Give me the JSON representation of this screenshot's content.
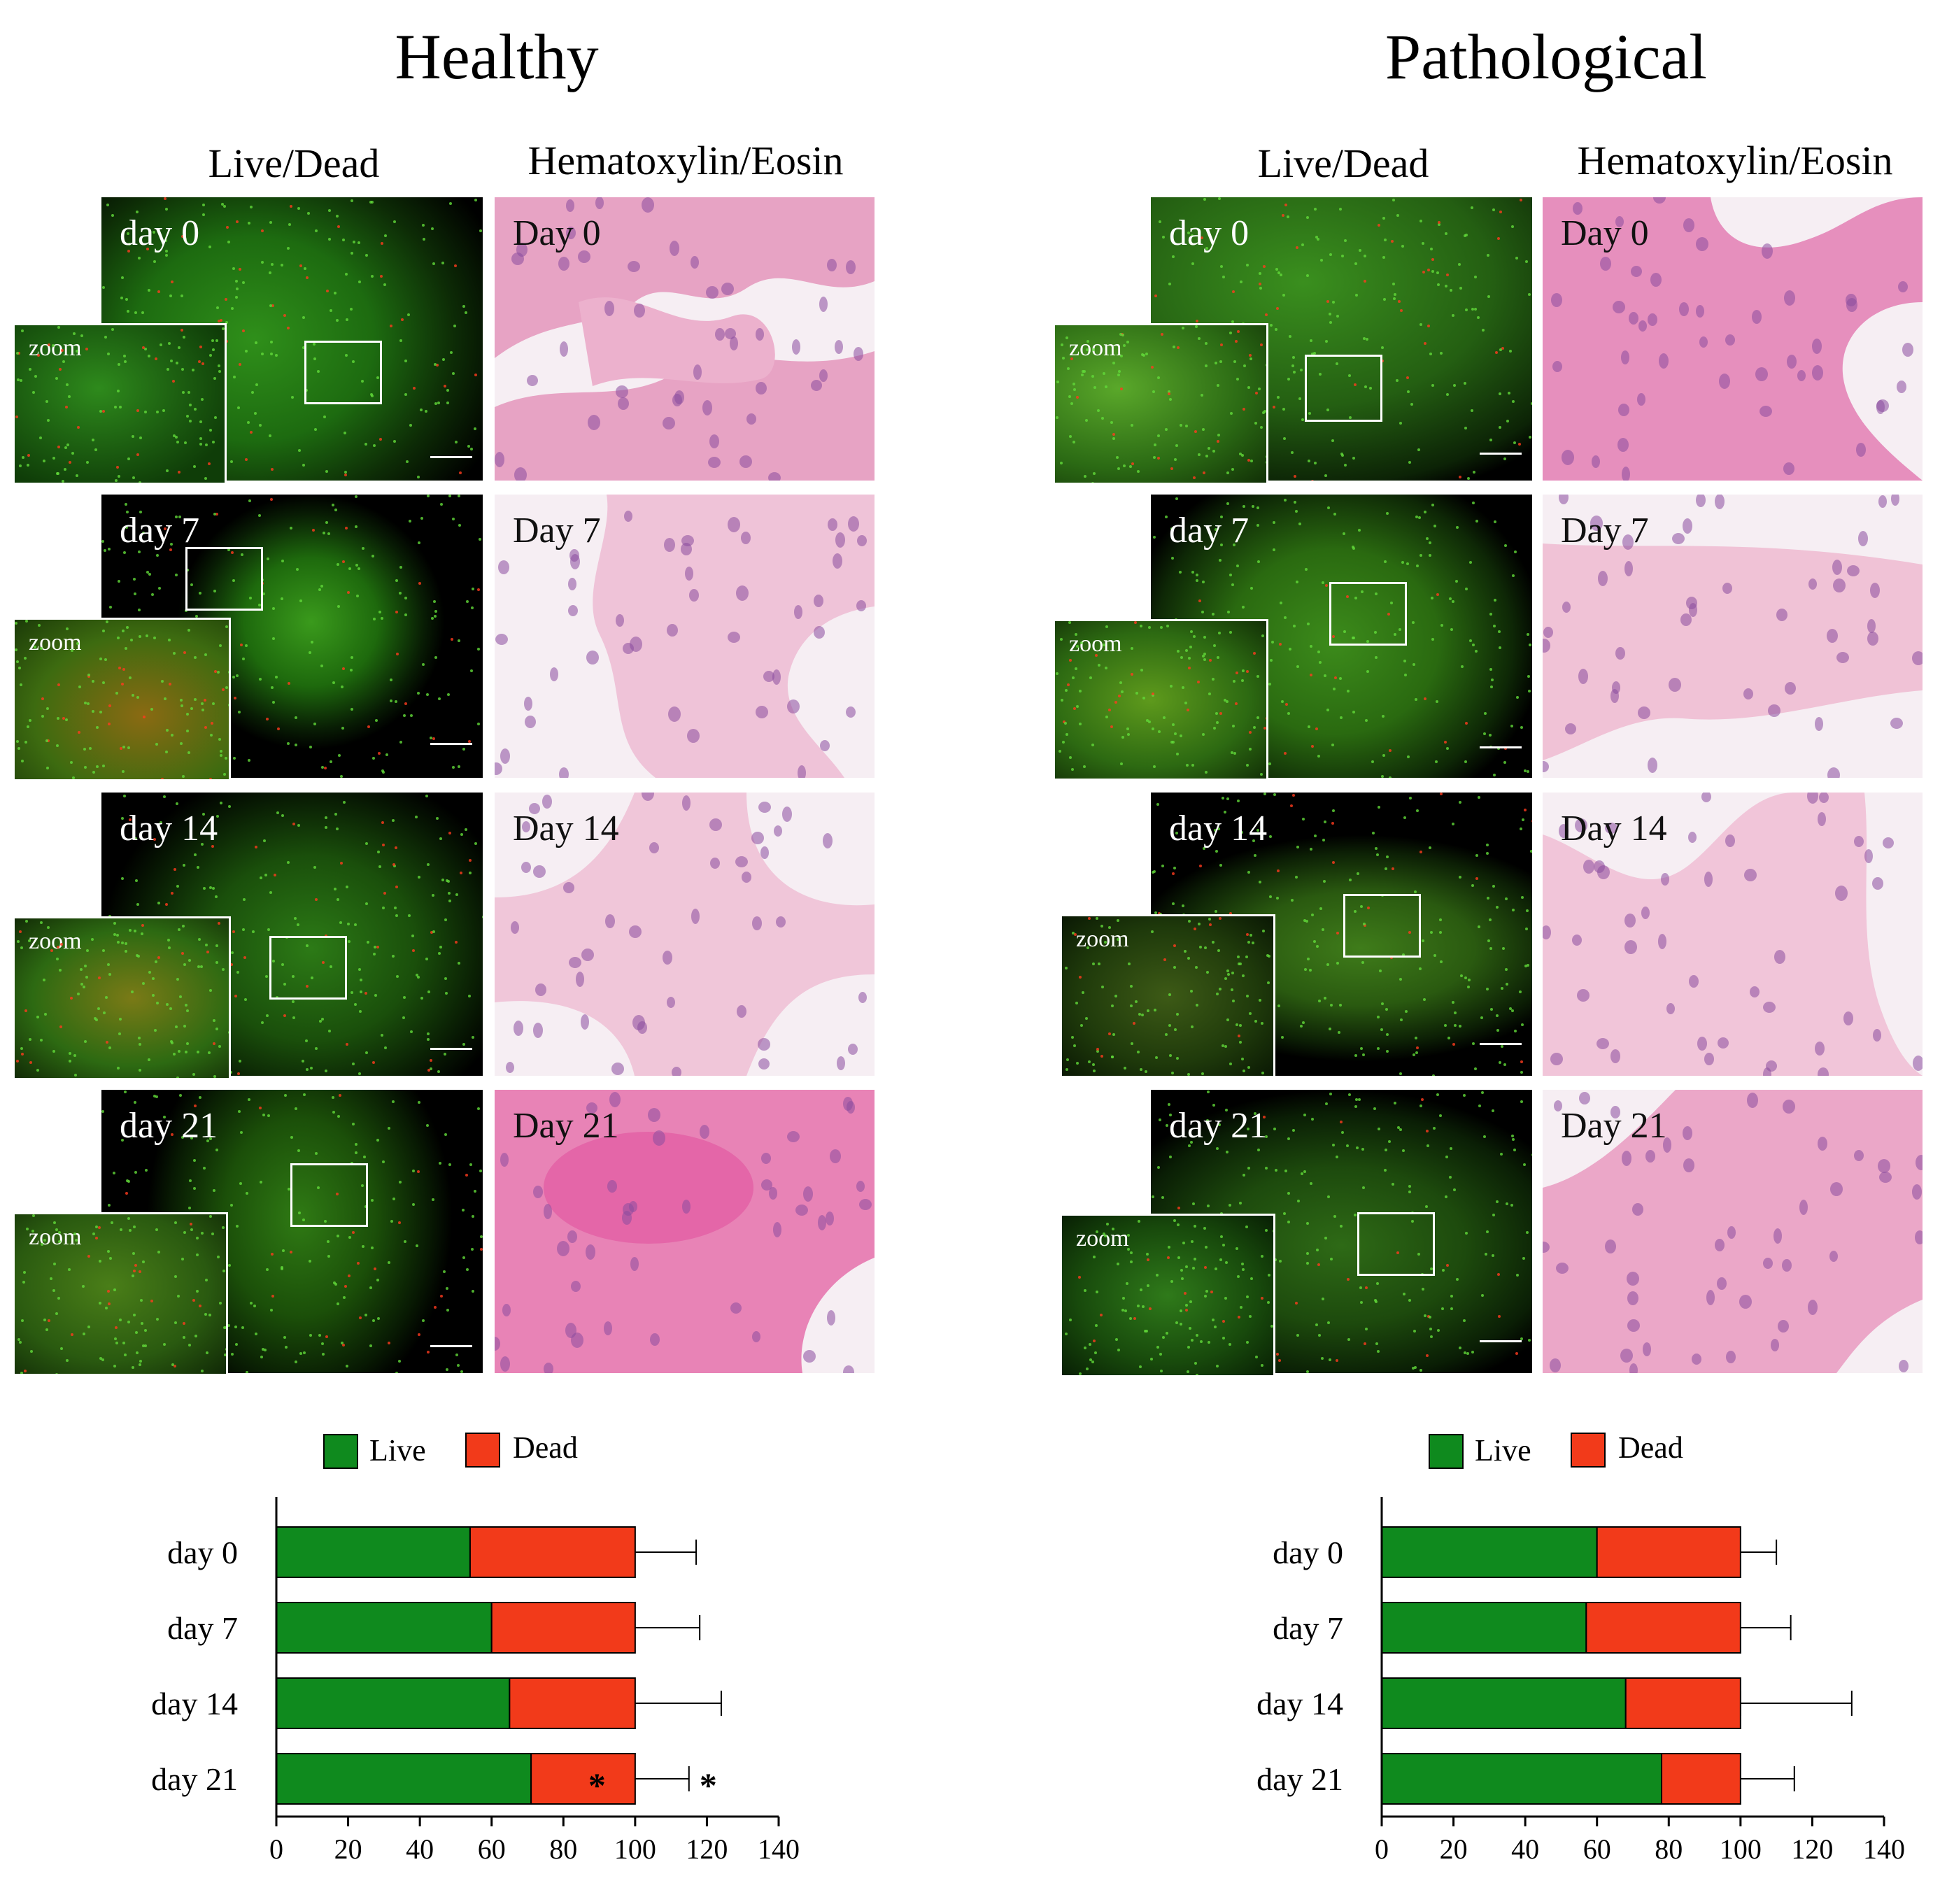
{
  "figure": {
    "groups": [
      {
        "title": "Healthy",
        "col_live": "Live/Dead",
        "col_he": "Hematoxylin/Eosin",
        "rows": [
          {
            "fluo_label": "day 0",
            "zoom_label": "zoom",
            "he_label": "Day 0"
          },
          {
            "fluo_label": "day 7",
            "zoom_label": "zoom",
            "he_label": "Day 7"
          },
          {
            "fluo_label": "day 14",
            "zoom_label": "zoom",
            "he_label": "Day 14"
          },
          {
            "fluo_label": "day 21",
            "zoom_label": "zoom",
            "he_label": "Day 21"
          }
        ],
        "legend": {
          "live": "Live",
          "dead": "Dead"
        }
      },
      {
        "title": "Pathological",
        "col_live": "Live/Dead",
        "col_he": "Hematoxylin/Eosin",
        "rows": [
          {
            "fluo_label": "day 0",
            "zoom_label": "zoom",
            "he_label": "Day 0"
          },
          {
            "fluo_label": "day 7",
            "zoom_label": "zoom",
            "he_label": "Day 7"
          },
          {
            "fluo_label": "day 14",
            "zoom_label": "zoom",
            "he_label": "Day 14"
          },
          {
            "fluo_label": "day 21",
            "zoom_label": "zoom",
            "he_label": "Day 21"
          }
        ],
        "legend": {
          "live": "Live",
          "dead": "Dead"
        }
      }
    ],
    "colors": {
      "live": "#0f8a1e",
      "dead": "#f23a1a",
      "he_bg": "#f6eef3",
      "he_tissue": "#e9a9c8",
      "nucleus": "#8a4d9e"
    }
  },
  "chart_data": [
    {
      "type": "bar",
      "stacked": true,
      "orientation": "horizontal",
      "categories": [
        "day 0",
        "day 7",
        "day 14",
        "day 21"
      ],
      "series": [
        {
          "name": "Live",
          "values": [
            54,
            60,
            65,
            71
          ],
          "error_plus": [
            18,
            18,
            25,
            16
          ]
        },
        {
          "name": "Dead",
          "values": [
            46,
            40,
            35,
            29
          ],
          "error_plus": [
            17,
            18,
            24,
            15
          ]
        }
      ],
      "xlim": [
        0,
        140
      ],
      "xticks": [
        0,
        20,
        40,
        60,
        80,
        100,
        120,
        140
      ],
      "annotations": [
        {
          "category": "day 21",
          "text": "*"
        },
        {
          "category": "day 21",
          "text": "*"
        }
      ],
      "legend": "top"
    },
    {
      "type": "bar",
      "stacked": true,
      "orientation": "horizontal",
      "categories": [
        "day 0",
        "day 7",
        "day 14",
        "day 21"
      ],
      "series": [
        {
          "name": "Live",
          "values": [
            60,
            57,
            68,
            78
          ],
          "error_plus": [
            10,
            15,
            32,
            16
          ]
        },
        {
          "name": "Dead",
          "values": [
            40,
            43,
            32,
            22
          ],
          "error_plus": [
            10,
            14,
            31,
            15
          ]
        }
      ],
      "xlim": [
        0,
        140
      ],
      "xticks": [
        0,
        20,
        40,
        60,
        80,
        100,
        120,
        140
      ],
      "legend": "top"
    }
  ]
}
